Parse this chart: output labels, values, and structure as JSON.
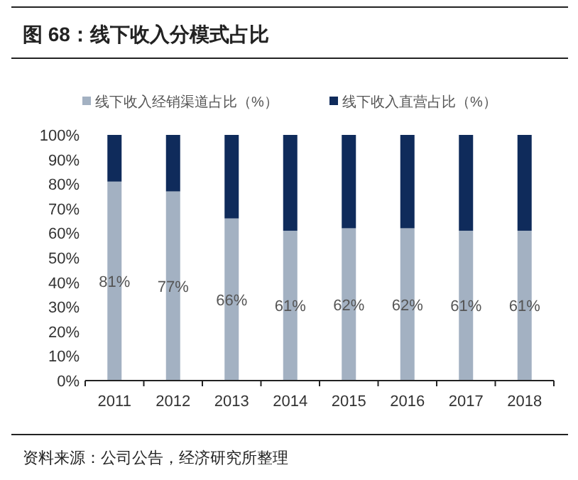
{
  "chart_data": {
    "type": "bar",
    "title": "图 68：线下收入分模式占比",
    "stacked": true,
    "legend": "top",
    "grid": false,
    "categories": [
      "2011",
      "2012",
      "2013",
      "2014",
      "2015",
      "2016",
      "2017",
      "2018"
    ],
    "series": [
      {
        "name": "线下收入经销渠道占比（%）",
        "color": "#a3b1c2",
        "values": [
          81,
          77,
          66,
          61,
          62,
          62,
          61,
          61
        ],
        "value_labels": [
          "81%",
          "77%",
          "66%",
          "61%",
          "62%",
          "62%",
          "61%",
          "61%"
        ]
      },
      {
        "name": "线下收入直营占比（%）",
        "color": "#0f2b5b",
        "values": [
          19,
          23,
          34,
          39,
          38,
          38,
          39,
          39
        ]
      }
    ],
    "ylim": [
      0,
      100
    ],
    "yticks": [
      {
        "value": 0,
        "label": "0%"
      },
      {
        "value": 10,
        "label": "10%"
      },
      {
        "value": 20,
        "label": "20%"
      },
      {
        "value": 30,
        "label": "30%"
      },
      {
        "value": 40,
        "label": "40%"
      },
      {
        "value": 50,
        "label": "50%"
      },
      {
        "value": 60,
        "label": "60%"
      },
      {
        "value": 70,
        "label": "70%"
      },
      {
        "value": 80,
        "label": "80%"
      },
      {
        "value": 90,
        "label": "90%"
      },
      {
        "value": 100,
        "label": "100%"
      }
    ],
    "annotations": [
      "资料来源：公司公告，经济研究所整理"
    ]
  }
}
